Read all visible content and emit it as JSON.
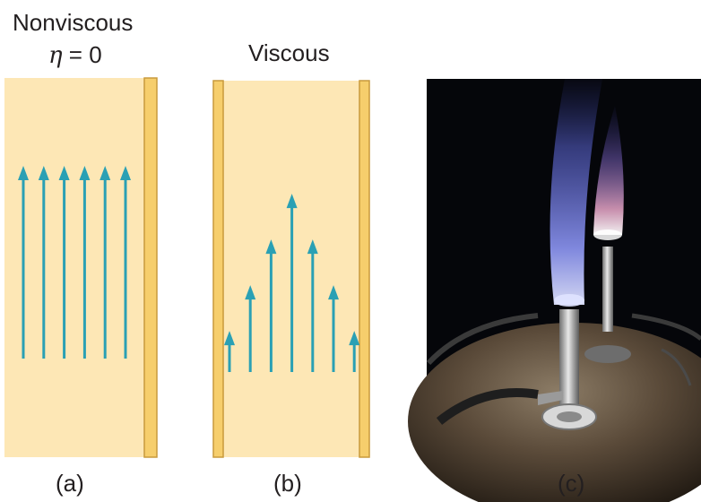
{
  "panel_a": {
    "title": "Nonviscous",
    "eta_symbol": "η",
    "eta_equation": " = 0",
    "label": "(a)",
    "arrow_lengths": [
      1,
      1,
      1,
      1,
      1,
      1
    ]
  },
  "panel_b": {
    "title": "Viscous",
    "label": "(b)",
    "arrow_lengths": [
      0.18,
      0.38,
      0.58,
      0.78,
      0.58,
      0.38,
      0.18
    ]
  },
  "panel_c": {
    "label": "(c)"
  },
  "colors": {
    "fluid": "#fde7b5",
    "wall": "#f6ce6c",
    "wall_edge": "#c89a3c",
    "arrow": "#2aa0b4",
    "photo_bg": "#05060a",
    "flame_blue": "#6f7df0",
    "flame_inner": "#c6ccff"
  }
}
